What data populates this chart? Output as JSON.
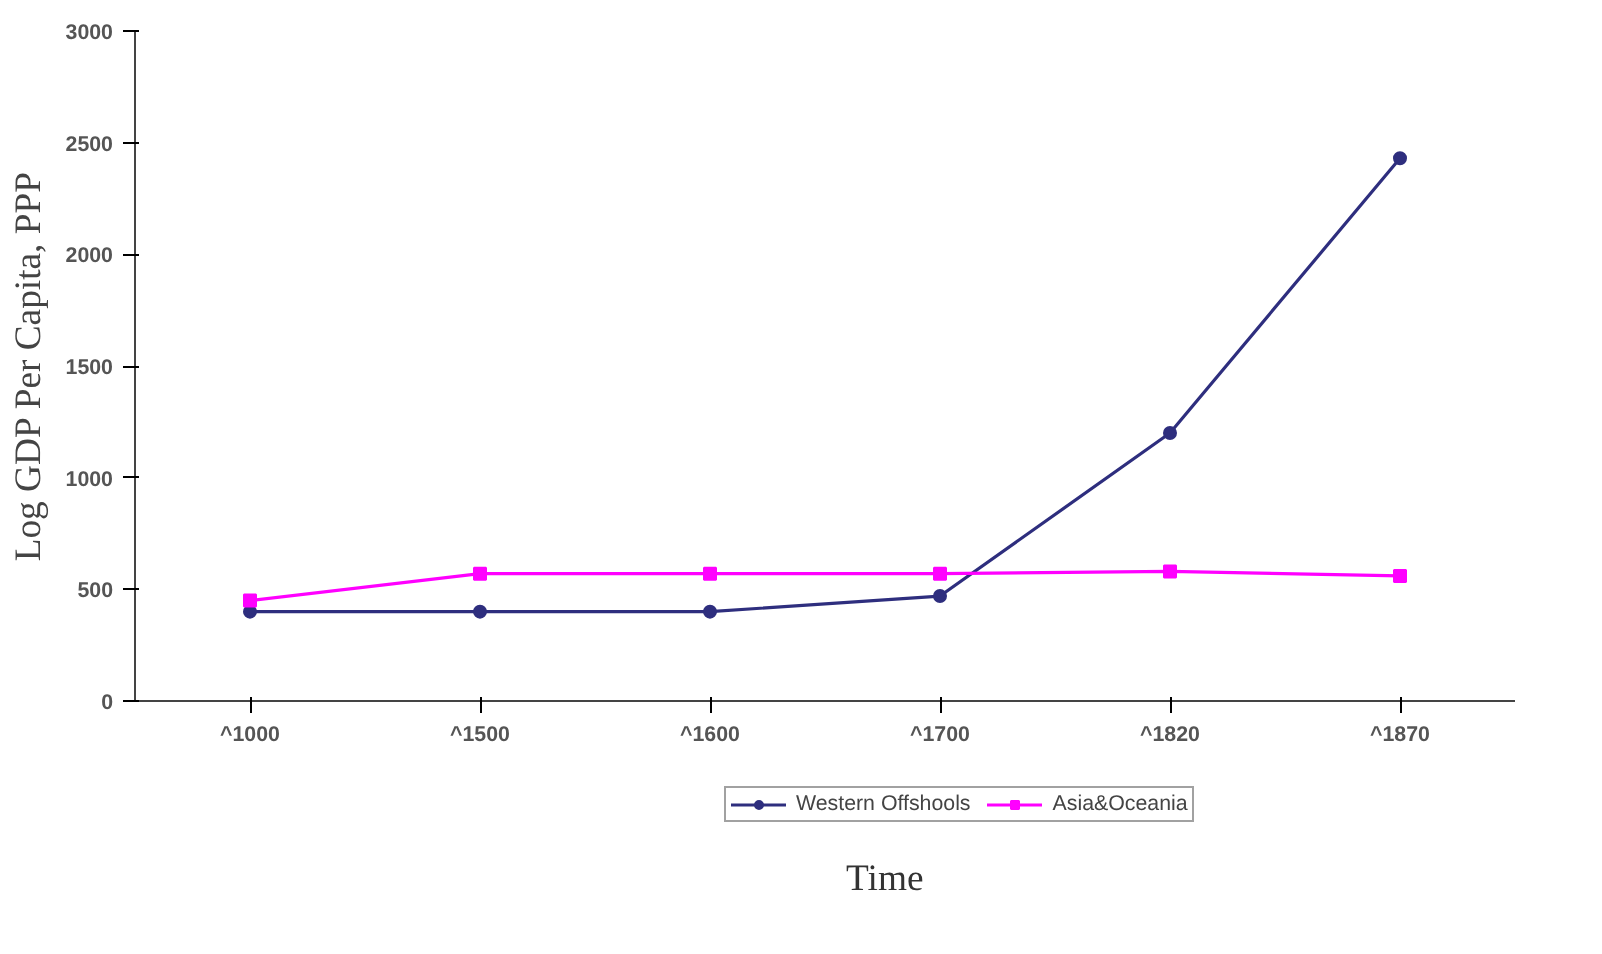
{
  "chart_data": {
    "type": "line",
    "xlabel": "Time",
    "ylabel": "Log GDP Per Capita, PPP",
    "categories": [
      "^1000",
      "^1500",
      "^1600",
      "^1700",
      "^1820",
      "^1870"
    ],
    "series": [
      {
        "name": "Western Offshools",
        "color": "#2e2e7e",
        "marker": "circle",
        "values": [
          400,
          400,
          400,
          470,
          1200,
          2430
        ]
      },
      {
        "name": "Asia&Oceania",
        "color": "#ff00ff",
        "marker": "square",
        "values": [
          450,
          570,
          570,
          570,
          580,
          560
        ]
      }
    ],
    "ylim": [
      0,
      3000
    ],
    "yticks": [
      0,
      500,
      1000,
      1500,
      2000,
      2500,
      3000
    ],
    "grid": false,
    "legend": "bottom",
    "line_style": "solid"
  }
}
